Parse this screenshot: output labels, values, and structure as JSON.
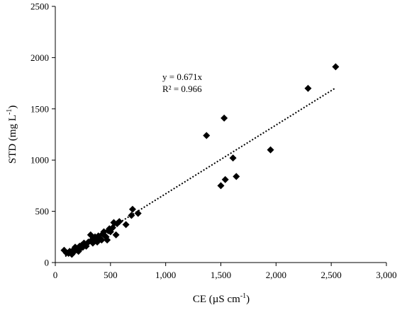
{
  "chart_data": {
    "type": "scatter",
    "xlabel": "CE  (µS cm",
    "xlabel_sup": "-1",
    "xlabel_close": ")",
    "ylabel": "STD (mg L",
    "ylabel_sup": "-1",
    "ylabel_close": ")",
    "xlim": [
      0,
      3000
    ],
    "ylim": [
      0,
      2500
    ],
    "x_ticks": [
      0,
      500,
      1000,
      1500,
      2000,
      2500,
      3000
    ],
    "x_tick_labels": [
      "0",
      "500",
      "1,000",
      "1,500",
      "2,000",
      "2,500",
      "3,000"
    ],
    "y_ticks": [
      0,
      500,
      1000,
      1500,
      2000,
      2500
    ],
    "y_tick_labels": [
      "0",
      "500",
      "1000",
      "1500",
      "2000",
      "2500"
    ],
    "grid": false,
    "marker": "diamond",
    "marker_color": "#000000",
    "trendline": {
      "slope": 0.671,
      "x_range": [
        90,
        2540
      ],
      "style": "dotted"
    },
    "equation": "y = 0.671x",
    "r2": "R² = 0.966",
    "points": [
      [
        80,
        120
      ],
      [
        100,
        95
      ],
      [
        120,
        90
      ],
      [
        130,
        110
      ],
      [
        140,
        100
      ],
      [
        150,
        80
      ],
      [
        160,
        120
      ],
      [
        170,
        105
      ],
      [
        180,
        150
      ],
      [
        190,
        140
      ],
      [
        200,
        130
      ],
      [
        210,
        110
      ],
      [
        220,
        160
      ],
      [
        230,
        140
      ],
      [
        240,
        170
      ],
      [
        250,
        150
      ],
      [
        260,
        190
      ],
      [
        270,
        175
      ],
      [
        280,
        160
      ],
      [
        300,
        200
      ],
      [
        320,
        270
      ],
      [
        330,
        220
      ],
      [
        340,
        190
      ],
      [
        350,
        210
      ],
      [
        360,
        250
      ],
      [
        370,
        230
      ],
      [
        380,
        200
      ],
      [
        390,
        260
      ],
      [
        400,
        240
      ],
      [
        410,
        230
      ],
      [
        420,
        220
      ],
      [
        430,
        280
      ],
      [
        440,
        300
      ],
      [
        450,
        260
      ],
      [
        460,
        250
      ],
      [
        470,
        220
      ],
      [
        480,
        310
      ],
      [
        490,
        330
      ],
      [
        500,
        300
      ],
      [
        520,
        340
      ],
      [
        530,
        390
      ],
      [
        550,
        270
      ],
      [
        560,
        380
      ],
      [
        580,
        400
      ],
      [
        640,
        370
      ],
      [
        690,
        460
      ],
      [
        700,
        520
      ],
      [
        750,
        480
      ],
      [
        1370,
        1240
      ],
      [
        1500,
        750
      ],
      [
        1530,
        1410
      ],
      [
        1540,
        810
      ],
      [
        1610,
        1020
      ],
      [
        1640,
        840
      ],
      [
        1950,
        1100
      ],
      [
        2290,
        1700
      ],
      [
        2540,
        1910
      ]
    ]
  }
}
